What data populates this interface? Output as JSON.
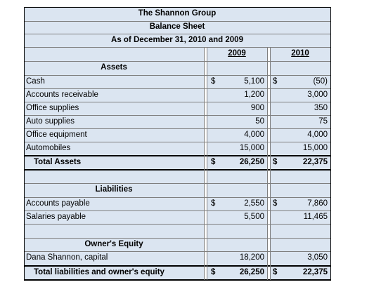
{
  "header": {
    "company": "The Shannon Group",
    "statement": "Balance Sheet",
    "as_of": "As of December 31, 2010 and 2009",
    "col_2009": "2009",
    "col_2010": "2010"
  },
  "assets": {
    "heading": "Assets",
    "rows": [
      {
        "label": "Cash",
        "cur_2009": "$",
        "v2009": "5,100",
        "cur_2010": "$",
        "v2010": "(50)"
      },
      {
        "label": "Accounts receivable",
        "cur_2009": "",
        "v2009": "1,200",
        "cur_2010": "",
        "v2010": "3,000"
      },
      {
        "label": "Office supplies",
        "cur_2009": "",
        "v2009": "900",
        "cur_2010": "",
        "v2010": "350"
      },
      {
        "label": "Auto supplies",
        "cur_2009": "",
        "v2009": "50",
        "cur_2010": "",
        "v2010": "75"
      },
      {
        "label": "Office equipment",
        "cur_2009": "",
        "v2009": "4,000",
        "cur_2010": "",
        "v2010": "4,000"
      },
      {
        "label": "Automobiles",
        "cur_2009": "",
        "v2009": "15,000",
        "cur_2010": "",
        "v2010": "15,000"
      }
    ],
    "total": {
      "label": "Total Assets",
      "cur_2009": "$",
      "v2009": "26,250",
      "cur_2010": "$",
      "v2010": "22,375"
    }
  },
  "liabilities": {
    "heading": "Liabilities",
    "rows": [
      {
        "label": "Accounts payable",
        "cur_2009": "$",
        "v2009": "2,550",
        "cur_2010": "$",
        "v2010": "7,860"
      },
      {
        "label": "Salaries payable",
        "cur_2009": "",
        "v2009": "5,500",
        "cur_2010": "",
        "v2010": "11,465"
      }
    ]
  },
  "equity": {
    "heading": "Owner's Equity",
    "rows": [
      {
        "label": "Dana Shannon, capital",
        "cur_2009": "",
        "v2009": "18,200",
        "cur_2010": "",
        "v2010": "3,050"
      }
    ],
    "total": {
      "label": "Total liabilities and owner's equity",
      "cur_2009": "$",
      "v2009": "26,250",
      "cur_2010": "$",
      "v2010": "22,375"
    }
  },
  "colors": {
    "cell_fill": "#dbe5f1",
    "grid_line": "#7f7f7f",
    "border": "#000000",
    "text": "#000000"
  }
}
